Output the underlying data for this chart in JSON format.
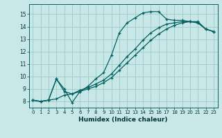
{
  "xlabel": "Humidex (Indice chaleur)",
  "ylabel": "",
  "background_color": "#c8e8e8",
  "grid_color": "#a0c8c8",
  "line_color": "#006060",
  "xlim": [
    -0.5,
    23.5
  ],
  "ylim": [
    7.5,
    15.8
  ],
  "yticks": [
    8,
    9,
    10,
    11,
    12,
    13,
    14,
    15
  ],
  "xticks": [
    0,
    1,
    2,
    3,
    4,
    5,
    6,
    7,
    8,
    9,
    10,
    11,
    12,
    13,
    14,
    15,
    16,
    17,
    18,
    19,
    20,
    21,
    22,
    23
  ],
  "curve1_x": [
    0,
    1,
    2,
    3,
    4,
    5,
    6,
    7,
    8,
    9,
    10,
    11,
    12,
    13,
    14,
    15,
    16,
    17,
    18,
    19,
    20,
    21,
    22,
    23
  ],
  "curve1_y": [
    8.1,
    8.0,
    8.1,
    9.8,
    9.0,
    7.9,
    8.8,
    9.2,
    9.8,
    10.3,
    11.7,
    13.5,
    14.3,
    14.7,
    15.1,
    15.2,
    15.2,
    14.6,
    14.5,
    14.5,
    14.4,
    14.3,
    13.8,
    13.6
  ],
  "curve2_x": [
    0,
    1,
    2,
    3,
    4,
    5,
    6,
    7,
    8,
    9,
    10,
    11,
    12,
    13,
    14,
    15,
    16,
    17,
    18,
    19,
    20,
    21,
    22,
    23
  ],
  "curve2_y": [
    8.1,
    8.0,
    8.1,
    8.2,
    8.5,
    8.6,
    8.8,
    9.0,
    9.2,
    9.5,
    9.9,
    10.5,
    11.1,
    11.7,
    12.3,
    12.9,
    13.4,
    13.8,
    14.1,
    14.3,
    14.4,
    14.4,
    13.8,
    13.6
  ],
  "curve3_x": [
    0,
    1,
    2,
    3,
    4,
    5,
    6,
    7,
    8,
    9,
    10,
    11,
    12,
    13,
    14,
    15,
    16,
    17,
    18,
    19,
    20,
    21,
    22,
    23
  ],
  "curve3_y": [
    8.1,
    8.0,
    8.1,
    9.8,
    8.8,
    8.6,
    8.9,
    9.1,
    9.4,
    9.7,
    10.2,
    10.9,
    11.6,
    12.2,
    12.9,
    13.5,
    13.9,
    14.2,
    14.3,
    14.4,
    14.4,
    14.3,
    13.8,
    13.6
  ],
  "marker": "+",
  "markersize": 3.5,
  "linewidth": 0.9
}
